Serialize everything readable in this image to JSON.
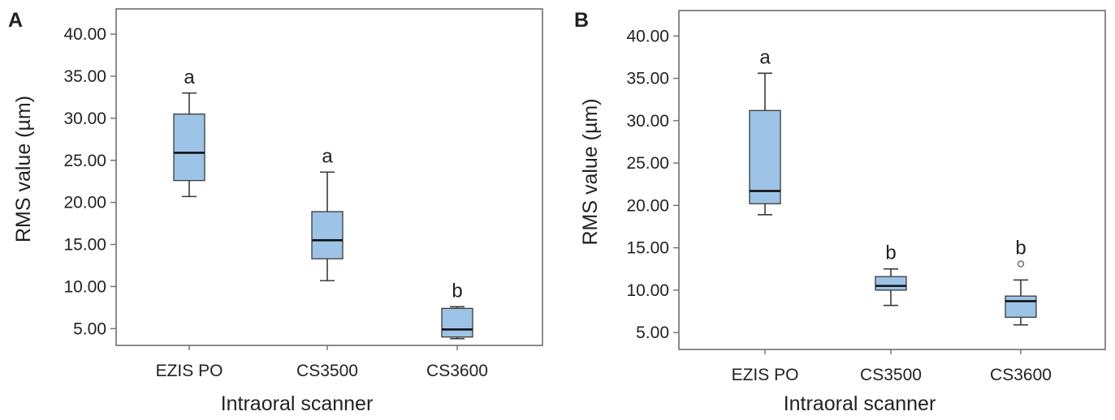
{
  "colors": {
    "box_fill": "#9dc3e6",
    "stroke": "#3a3a3a",
    "text": "#231f20",
    "median": "#111111"
  },
  "chart_data": [
    {
      "type": "boxplot",
      "panel_label": "A",
      "xlabel": "Intraoral scanner",
      "ylabel": "RMS value (µm)",
      "ylim": [
        3,
        43
      ],
      "ticks": [
        "5.00",
        "10.00",
        "15.00",
        "20.00",
        "25.00",
        "30.00",
        "35.00",
        "40.00"
      ],
      "categories": [
        "EZIS PO",
        "CS3500",
        "CS3600"
      ],
      "boxes": [
        {
          "whisker_low": 20.7,
          "q1": 22.6,
          "median": 25.9,
          "q3": 30.5,
          "whisker_high": 33.0,
          "outliers": [],
          "group": "a"
        },
        {
          "whisker_low": 10.7,
          "q1": 13.3,
          "median": 15.5,
          "q3": 18.9,
          "whisker_high": 23.6,
          "outliers": [],
          "group": "a"
        },
        {
          "whisker_low": 3.8,
          "q1": 4.0,
          "median": 4.9,
          "q3": 7.4,
          "whisker_high": 7.6,
          "outliers": [],
          "group": "b"
        }
      ]
    },
    {
      "type": "boxplot",
      "panel_label": "B",
      "xlabel": "Intraoral scanner",
      "ylabel": "RMS value (µm)",
      "ylim": [
        3,
        43
      ],
      "ticks": [
        "5.00",
        "10.00",
        "15.00",
        "20.00",
        "25.00",
        "30.00",
        "35.00",
        "40.00"
      ],
      "categories": [
        "EZIS PO",
        "CS3500",
        "CS3600"
      ],
      "boxes": [
        {
          "whisker_low": 18.9,
          "q1": 20.2,
          "median": 21.7,
          "q3": 31.2,
          "whisker_high": 35.6,
          "outliers": [],
          "group": "a"
        },
        {
          "whisker_low": 8.2,
          "q1": 10.0,
          "median": 10.5,
          "q3": 11.6,
          "whisker_high": 12.5,
          "outliers": [],
          "group": "b"
        },
        {
          "whisker_low": 5.9,
          "q1": 6.8,
          "median": 8.7,
          "q3": 9.3,
          "whisker_high": 11.2,
          "outliers": [
            13.1
          ],
          "group": "b"
        }
      ]
    }
  ]
}
